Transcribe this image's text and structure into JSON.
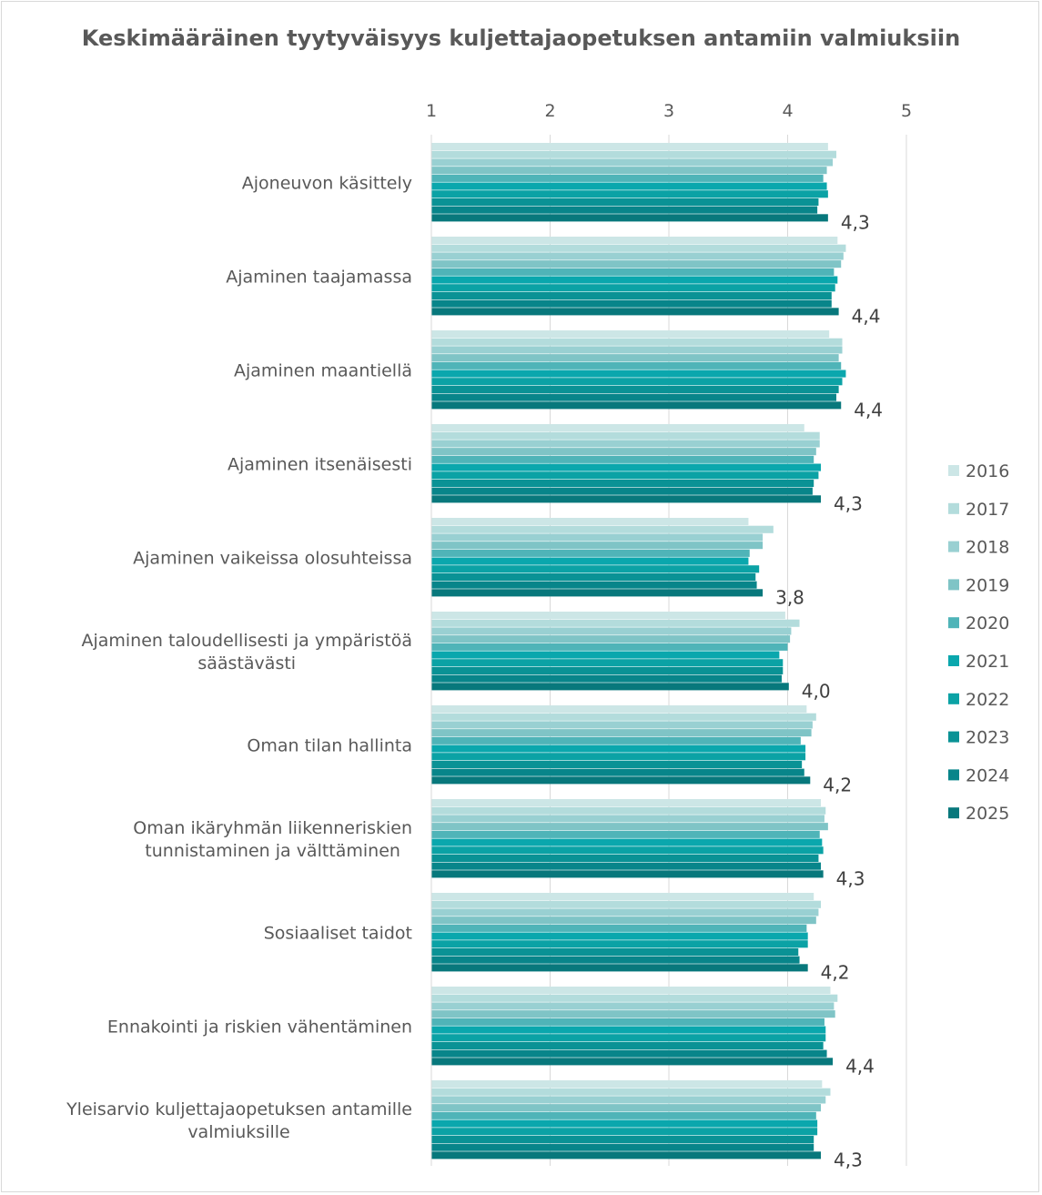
{
  "chart_data": {
    "type": "bar",
    "orientation": "horizontal",
    "title": "Keskimääräinen tyytyväisyys kuljettajaopetuksen antamiin valmiuksiin",
    "xlim": [
      1,
      5
    ],
    "ticks": [
      "1",
      "2",
      "3",
      "4",
      "5"
    ],
    "grid": true,
    "legend_position": "right",
    "categories": [
      [
        "Ajoneuvon käsittely"
      ],
      [
        "Ajaminen taajamassa"
      ],
      [
        "Ajaminen maantiellä"
      ],
      [
        "Ajaminen itsenäisesti"
      ],
      [
        "Ajaminen vaikeissa olosuhteissa"
      ],
      [
        "Ajaminen taloudellisesti ja ympäristöä",
        "säästävästi"
      ],
      [
        "Oman tilan hallinta"
      ],
      [
        "Oman ikäryhmän liikenneriskien",
        "tunnistaminen ja välttäminen"
      ],
      [
        "Sosiaaliset taidot"
      ],
      [
        "Ennakointi ja riskien vähentäminen"
      ],
      [
        "Yleisarvio kuljettajaopetuksen antamille",
        "valmiuksille"
      ]
    ],
    "data_labels": [
      "4,3",
      "4,4",
      "4,4",
      "4,3",
      "3,8",
      "4,0",
      "4,2",
      "4,3",
      "4,2",
      "4,4",
      "4,3"
    ],
    "series": [
      {
        "name": "2016",
        "color": "#cce6e6",
        "values": [
          4.34,
          4.42,
          4.35,
          4.14,
          3.67,
          3.98,
          4.16,
          4.28,
          4.22,
          4.36,
          4.29
        ]
      },
      {
        "name": "2017",
        "color": "#b3dcdc",
        "values": [
          4.41,
          4.49,
          4.46,
          4.27,
          3.88,
          4.1,
          4.24,
          4.32,
          4.28,
          4.42,
          4.36
        ]
      },
      {
        "name": "2018",
        "color": "#99d0d2",
        "values": [
          4.38,
          4.47,
          4.46,
          4.27,
          3.79,
          4.03,
          4.21,
          4.31,
          4.26,
          4.39,
          4.32
        ]
      },
      {
        "name": "2019",
        "color": "#7fc4c6",
        "values": [
          4.33,
          4.45,
          4.43,
          4.24,
          3.79,
          4.02,
          4.2,
          4.34,
          4.24,
          4.4,
          4.28
        ]
      },
      {
        "name": "2020",
        "color": "#4fb4b8",
        "values": [
          4.3,
          4.39,
          4.45,
          4.22,
          3.68,
          4.0,
          4.11,
          4.27,
          4.16,
          4.31,
          4.24
        ]
      },
      {
        "name": "2021",
        "color": "#0aa7ad",
        "values": [
          4.33,
          4.42,
          4.49,
          4.28,
          3.67,
          3.93,
          4.15,
          4.29,
          4.17,
          4.32,
          4.25
        ]
      },
      {
        "name": "2022",
        "color": "#0ba2a5",
        "values": [
          4.34,
          4.4,
          4.46,
          4.26,
          3.76,
          3.96,
          4.15,
          4.3,
          4.17,
          4.32,
          4.25
        ]
      },
      {
        "name": "2023",
        "color": "#0a9295",
        "values": [
          4.26,
          4.37,
          4.43,
          4.22,
          3.73,
          3.96,
          4.12,
          4.26,
          4.09,
          4.3,
          4.22
        ]
      },
      {
        "name": "2024",
        "color": "#08858a",
        "values": [
          4.25,
          4.37,
          4.41,
          4.21,
          3.74,
          3.95,
          4.14,
          4.28,
          4.1,
          4.33,
          4.22
        ]
      },
      {
        "name": "2025",
        "color": "#08787c",
        "values": [
          4.34,
          4.43,
          4.45,
          4.28,
          3.79,
          4.01,
          4.19,
          4.3,
          4.17,
          4.38,
          4.28
        ]
      }
    ]
  }
}
